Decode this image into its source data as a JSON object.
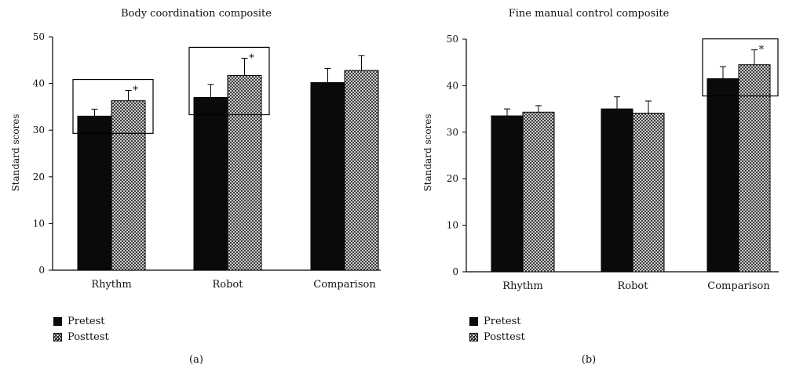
{
  "chart_data": [
    {
      "type": "bar",
      "title": "Body coordination composite",
      "ylabel": "Standard scores",
      "xlabel": "",
      "ylim": [
        0,
        50
      ],
      "yticks": [
        0,
        10,
        20,
        30,
        40,
        50
      ],
      "grid": false,
      "categories": [
        "Rhythm",
        "Robot",
        "Comparison"
      ],
      "series": [
        {
          "name": "Pretest",
          "values": [
            33,
            37,
            40.2
          ],
          "errors": [
            1.5,
            2.8,
            3.0
          ]
        },
        {
          "name": "Posttest",
          "values": [
            36.3,
            41.7,
            42.8
          ],
          "errors": [
            2.2,
            3.7,
            3.2
          ]
        }
      ],
      "significant": [
        0,
        1
      ],
      "annotation": "*",
      "legend_position": "bottom-left",
      "caption": "(a)"
    },
    {
      "type": "bar",
      "title": "Fine manual control composite",
      "ylabel": "Standard scores",
      "xlabel": "",
      "ylim": [
        0,
        50
      ],
      "yticks": [
        0,
        10,
        20,
        30,
        40,
        50
      ],
      "grid": false,
      "categories": [
        "Rhythm",
        "Robot",
        "Comparison"
      ],
      "series": [
        {
          "name": "Pretest",
          "values": [
            33.5,
            35,
            41.5
          ],
          "errors": [
            1.5,
            2.6,
            2.6
          ]
        },
        {
          "name": "Posttest",
          "values": [
            34.3,
            34.1,
            44.5
          ],
          "errors": [
            1.4,
            2.6,
            3.2
          ]
        }
      ],
      "significant": [
        2
      ],
      "annotation": "*",
      "legend_position": "bottom-left",
      "caption": "(b)"
    }
  ]
}
